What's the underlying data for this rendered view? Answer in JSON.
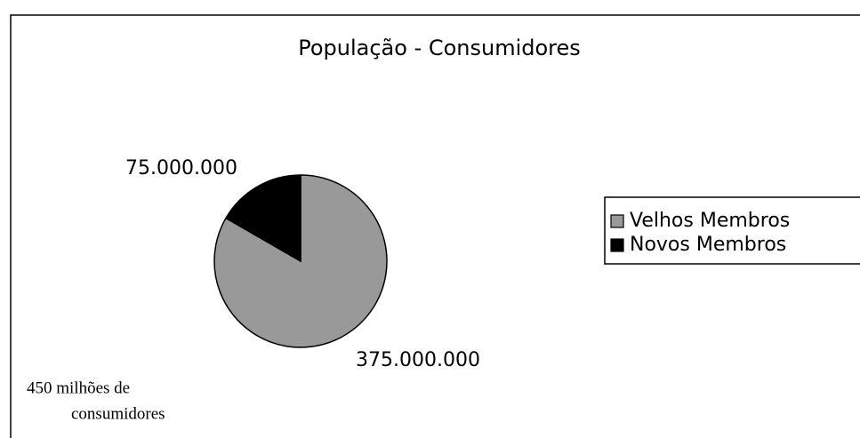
{
  "chart_data": {
    "type": "pie",
    "title": "População - Consumidores",
    "categories": [
      "Velhos Membros",
      "Novos Membros"
    ],
    "values": [
      375000000,
      75000000
    ],
    "value_labels": [
      "375.000.000",
      "75.000.000"
    ],
    "colors": [
      "#999999",
      "#000000"
    ],
    "legend": "right",
    "annotation": [
      "450 milhões  de",
      "consumidores"
    ]
  }
}
